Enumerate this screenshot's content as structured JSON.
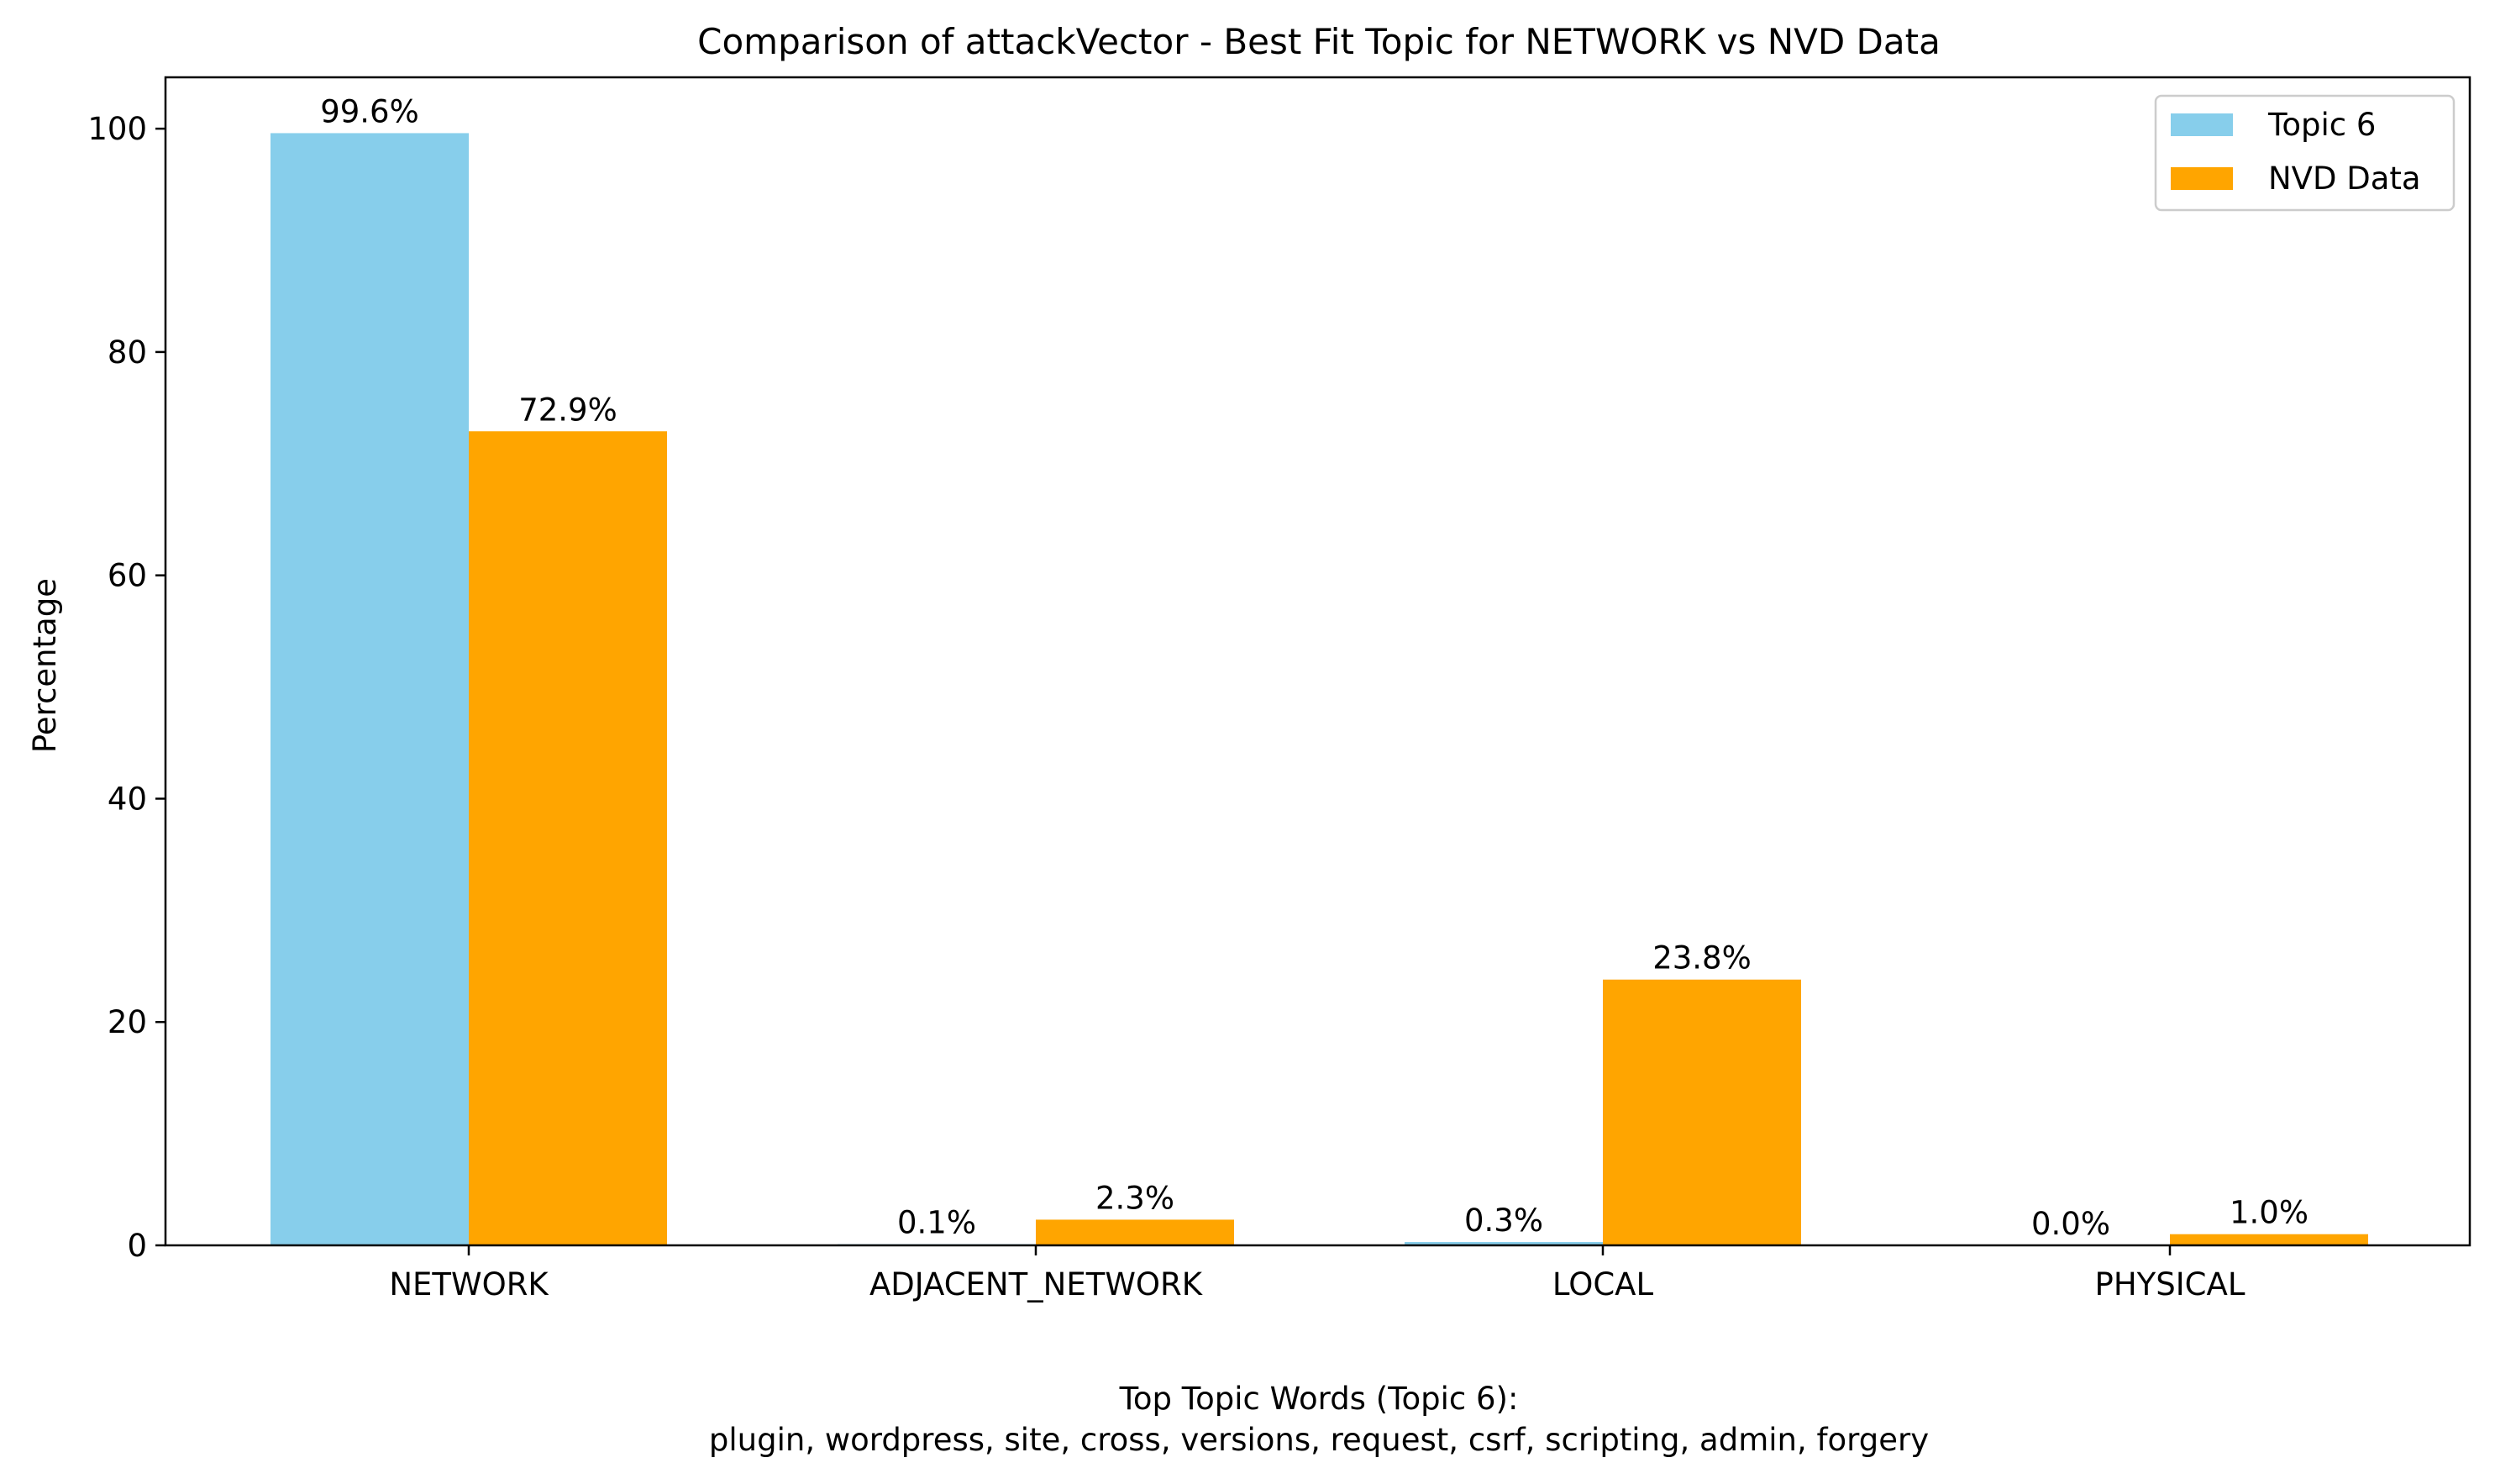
{
  "chart_data": {
    "type": "bar",
    "title": "Comparison of attackVector - Best Fit Topic for NETWORK vs NVD Data",
    "xlabel": "",
    "ylabel": "Percentage",
    "categories": [
      "NETWORK",
      "ADJACENT_NETWORK",
      "LOCAL",
      "PHYSICAL"
    ],
    "series": [
      {
        "name": "Topic 6",
        "values": [
          99.6,
          0.1,
          0.3,
          0.0
        ],
        "color": "#87CEEB"
      },
      {
        "name": "NVD Data",
        "values": [
          72.9,
          2.3,
          23.8,
          1.0
        ],
        "color": "#FFA500"
      }
    ],
    "data_labels": [
      [
        "99.6%",
        "0.1%",
        "0.3%",
        "0.0%"
      ],
      [
        "72.9%",
        "2.3%",
        "23.8%",
        "1.0%"
      ]
    ],
    "ylim": [
      0,
      104.6
    ],
    "yticks": [
      0,
      20,
      40,
      60,
      80,
      100
    ],
    "grid": false,
    "legend_position": "top-right"
  },
  "footer": {
    "heading": "Top Topic Words (Topic 6):",
    "words": "plugin,  wordpress,  site,  cross,  versions,  request,  csrf,  scripting,  admin,  forgery"
  }
}
